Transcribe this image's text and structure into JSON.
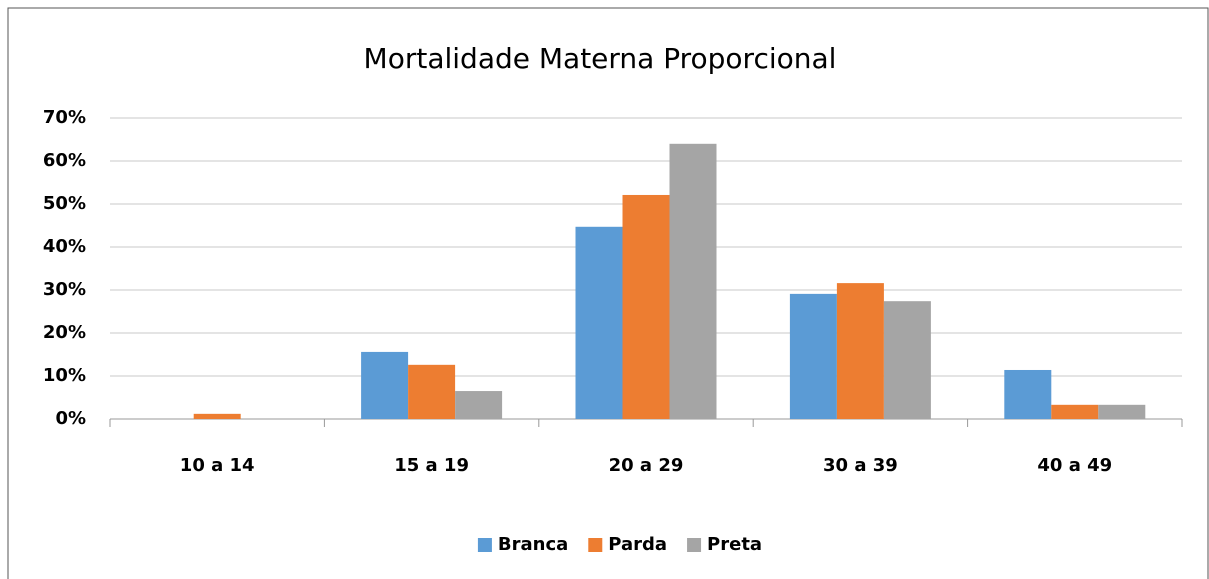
{
  "chart_data": {
    "type": "bar",
    "title": "Mortalidade Materna Proporcional",
    "categories": [
      "10 a 14",
      "15 a 19",
      "20 a 29",
      "30 a 39",
      "40 a 49"
    ],
    "series": [
      {
        "name": "Branca",
        "color": "#5b9bd5",
        "values": [
          0,
          15.6,
          44.7,
          29.1,
          11.4
        ]
      },
      {
        "name": "Parda",
        "color": "#ed7d31",
        "values": [
          1.2,
          12.6,
          52.1,
          31.6,
          3.3
        ]
      },
      {
        "name": "Preta",
        "color": "#a5a5a5",
        "values": [
          0,
          6.5,
          64.0,
          27.4,
          3.3
        ]
      }
    ],
    "ylim": [
      0,
      70
    ],
    "yticks": [
      {
        "value": 0,
        "label": "0%"
      },
      {
        "value": 10,
        "label": "10%"
      },
      {
        "value": 20,
        "label": "20%"
      },
      {
        "value": 30,
        "label": "30%"
      },
      {
        "value": 40,
        "label": "40%"
      },
      {
        "value": 50,
        "label": "50%"
      },
      {
        "value": 60,
        "label": "60%"
      },
      {
        "value": 70,
        "label": "70%"
      }
    ],
    "grid": true,
    "legend": "bottom"
  }
}
